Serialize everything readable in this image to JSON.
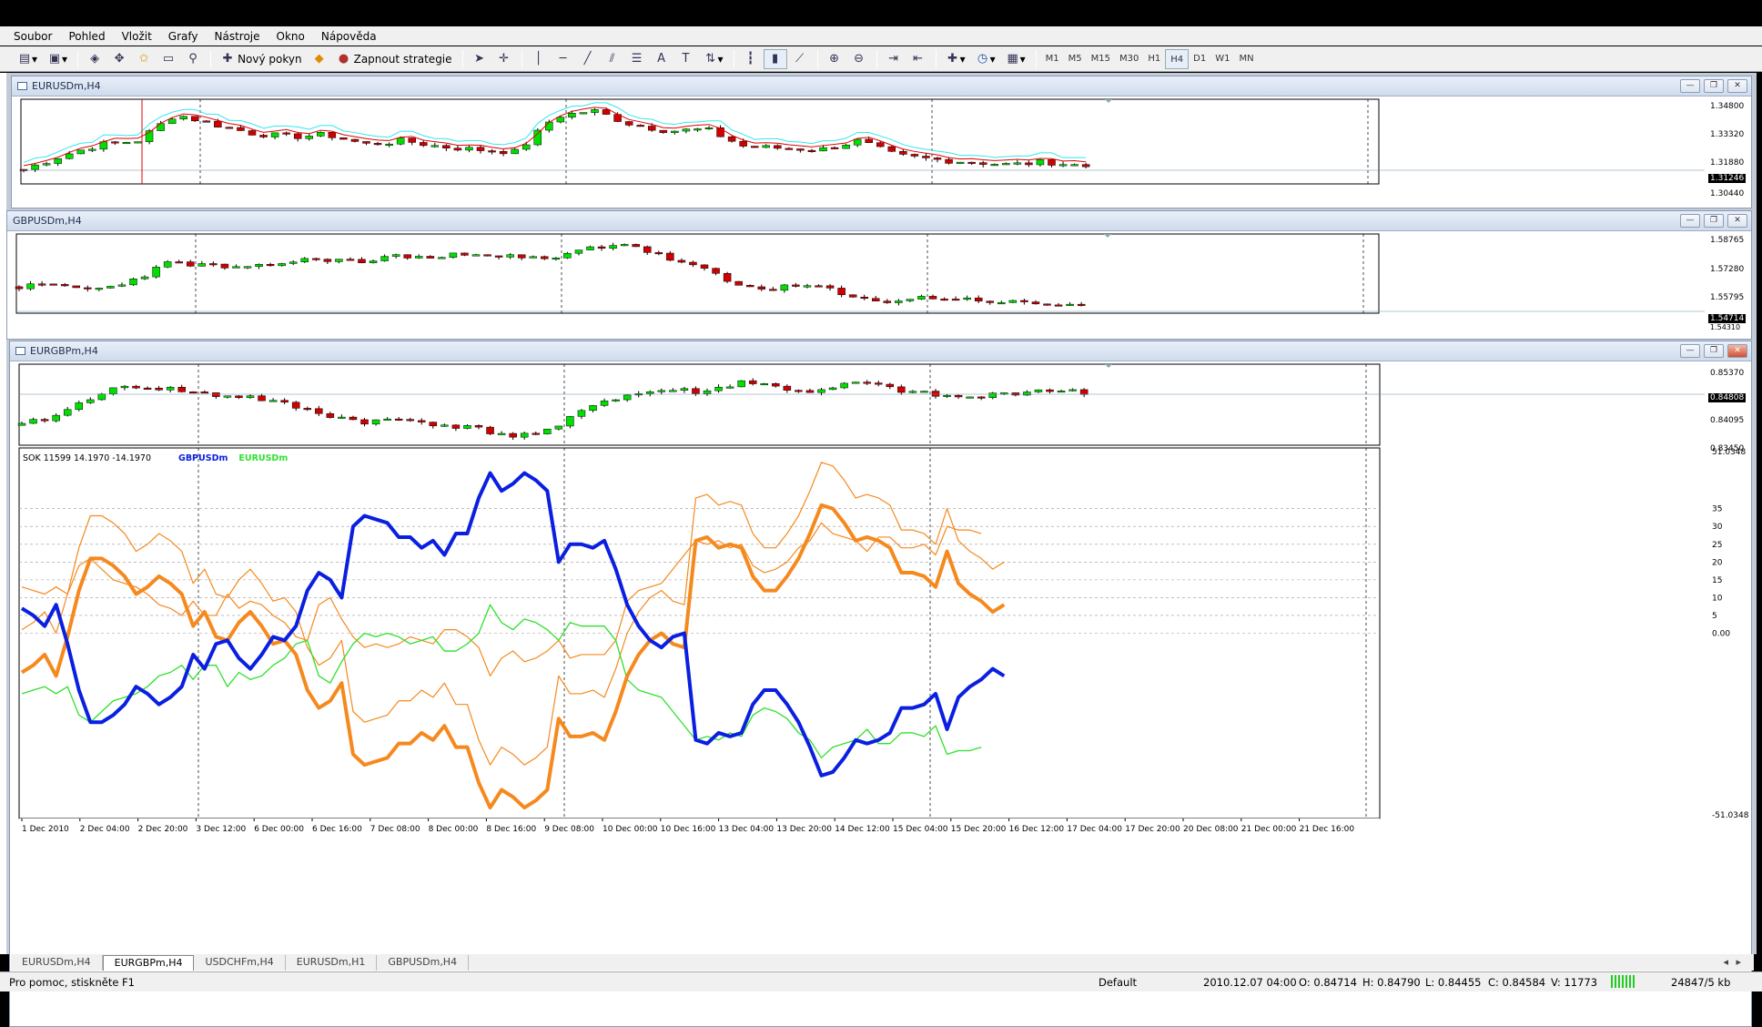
{
  "menu": [
    "Soubor",
    "Pohled",
    "Vložit",
    "Grafy",
    "Nástroje",
    "Okno",
    "Nápověda"
  ],
  "toolbar": {
    "new_order": "Nový pokyn",
    "strategies": "Zapnout strategie",
    "timeframes": [
      "M1",
      "M5",
      "M15",
      "M30",
      "H1",
      "H4",
      "D1",
      "W1",
      "MN"
    ],
    "active_timeframe": "H4"
  },
  "windows": {
    "eurusd": {
      "title": "EURUSDm,H4",
      "scale": [
        "1.34800",
        "1.33320",
        "1.31880",
        "1.30440"
      ],
      "current": "1.31246"
    },
    "gbpusd": {
      "title": "GBPUSDm,H4",
      "scale": [
        "1.58765",
        "1.57280",
        "1.55795"
      ],
      "current": "1.54714",
      "below": "1.54310"
    },
    "eurgbp": {
      "title": "EURGBPm,H4",
      "scale": [
        "0.85370",
        "0.84095",
        "0.83450"
      ],
      "current": "0.84808",
      "indicator": {
        "header": "SOK 11599 14.1970 -14.1970",
        "legend_series1": "GBPUSDm",
        "legend_series2": "EURUSDm",
        "scale": [
          "51.0348",
          "35",
          "30",
          "25",
          "20",
          "15",
          "10",
          "5",
          "0.00",
          "-51.0348"
        ]
      },
      "dates": [
        "1 Dec 2010",
        "2 Dec 04:00",
        "2 Dec 20:00",
        "3 Dec 12:00",
        "6 Dec 00:00",
        "6 Dec 16:00",
        "7 Dec 08:00",
        "8 Dec 00:00",
        "8 Dec 16:00",
        "9 Dec 08:00",
        "10 Dec 00:00",
        "10 Dec 16:00",
        "13 Dec 04:00",
        "13 Dec 20:00",
        "14 Dec 12:00",
        "15 Dec 04:00",
        "15 Dec 20:00",
        "16 Dec 12:00",
        "17 Dec 04:00",
        "17 Dec 20:00",
        "20 Dec 08:00",
        "21 Dec 00:00",
        "21 Dec 16:00"
      ]
    }
  },
  "colors": {
    "bull": "#00e000",
    "bear": "#d00000",
    "blue": "#0a1fe0",
    "orange": "#f5891e",
    "green": "#2fe02f",
    "cyan": "#30e8f0"
  },
  "chart_data": [
    {
      "type": "line",
      "title": "SOK 11599 14.1970 -14.1970",
      "ylim": [
        -51.0348,
        51.0348
      ],
      "series": [
        {
          "name": "GBPUSDm",
          "values": [
            7,
            5,
            2,
            8,
            -3,
            -16,
            -25,
            -25,
            -23,
            -20,
            -15,
            -17,
            -20,
            -18,
            -15,
            -6,
            -10,
            -3,
            -2,
            -7,
            -10,
            -6,
            -1,
            -2,
            2,
            12,
            17,
            15,
            10,
            30,
            33,
            32,
            31,
            27,
            27,
            24,
            26,
            22,
            28,
            28,
            38,
            45,
            40,
            42,
            45,
            43,
            40,
            20,
            25,
            25,
            24,
            26,
            18,
            8,
            2,
            -2,
            -4,
            -1,
            0,
            -30,
            -31,
            -28,
            -29,
            -28,
            -20,
            -16,
            -16,
            -20,
            -25,
            -32,
            -40,
            -39,
            -35,
            -30,
            -31,
            -30,
            -28,
            -21,
            -21,
            -20,
            -17,
            -27,
            -18,
            -15,
            -13,
            -10,
            -12
          ]
        },
        {
          "name": "EURUSDm",
          "values": [
            -17,
            -16,
            -15,
            -17,
            -15,
            -23,
            -25,
            -22,
            -19,
            -18,
            -17,
            -15,
            -12,
            -11,
            -9,
            -13,
            -9,
            -9,
            -15,
            -11,
            -13,
            -12,
            -9,
            -7,
            -3,
            -2,
            -12,
            -14,
            -8,
            -3,
            0,
            -1,
            0,
            -1,
            -3,
            -2,
            -1,
            -5,
            -5,
            -3,
            0,
            8,
            3,
            1,
            4,
            3,
            1,
            -2,
            3,
            2,
            2,
            2,
            -2,
            -13,
            -16,
            -17,
            -18,
            -22,
            -26,
            -30,
            -29,
            -30,
            -28,
            -29,
            -23,
            -21,
            -22,
            -24,
            -28,
            -30,
            -35,
            -32,
            -31,
            -30,
            -27,
            -31,
            -31,
            -28,
            -28,
            -29,
            -26,
            -34,
            -33,
            -33,
            -32
          ]
        }
      ]
    }
  ],
  "tabs": [
    "EURUSDm,H4",
    "EURGBPm,H4",
    "USDCHFm,H4",
    "EURUSDm,H1",
    "GBPUSDm,H4"
  ],
  "active_tab": "EURGBPm,H4",
  "status": {
    "help": "Pro pomoc, stiskněte F1",
    "profile": "Default",
    "time": "2010.12.07 04:00",
    "open": "O: 0.84714",
    "high": "H: 0.84790",
    "low": "L: 0.84455",
    "close": "C: 0.84584",
    "volume": "V: 11773",
    "traffic": "24847/5 kb"
  }
}
